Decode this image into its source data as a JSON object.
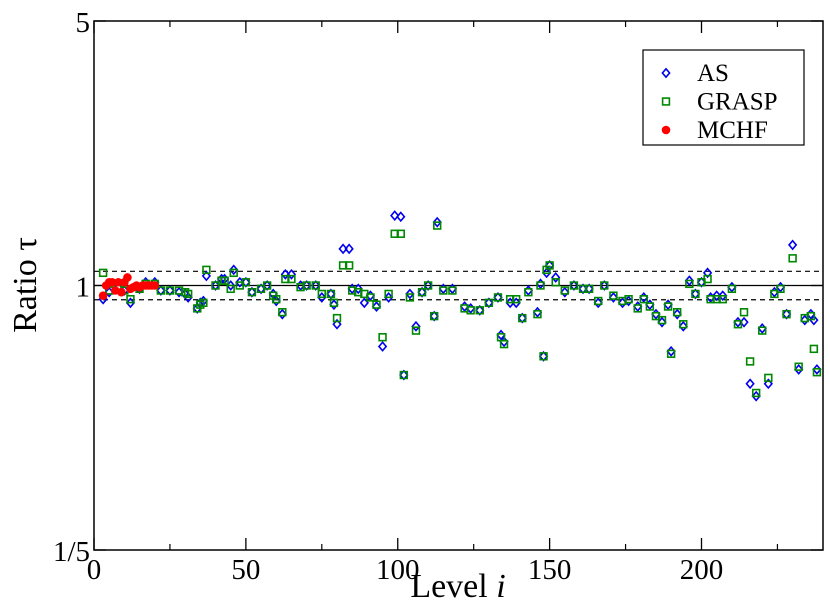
{
  "chart_data": {
    "type": "scatter",
    "title": "",
    "xlabel": "Level",
    "xlabel_var": "i",
    "ylabel": "Ratio τ",
    "xlim": [
      0,
      240
    ],
    "ylim": [
      0.2,
      5
    ],
    "yscale": "log",
    "x_ticks": [
      0,
      50,
      100,
      150,
      200
    ],
    "x_tick_labels": [
      "0",
      "50",
      "100",
      "150",
      "200"
    ],
    "y_ticks": [
      0.2,
      1,
      5
    ],
    "y_tick_labels": [
      "1/5",
      "1",
      "5"
    ],
    "reference_lines": [
      {
        "y": 1.0,
        "style": "solid"
      },
      {
        "y": 1.09,
        "style": "dashed"
      },
      {
        "y": 0.917,
        "style": "dashed"
      }
    ],
    "legend_position": "top-right",
    "series": [
      {
        "name": "AS",
        "marker": "diamond-open",
        "color": "#0000ee",
        "points": [
          [
            3,
            0.92
          ],
          [
            5,
            0.96
          ],
          [
            8,
            0.99
          ],
          [
            10,
            0.97
          ],
          [
            12,
            0.9
          ],
          [
            15,
            0.98
          ],
          [
            17,
            1.02
          ],
          [
            20,
            1.02
          ],
          [
            22,
            0.97
          ],
          [
            25,
            0.97
          ],
          [
            28,
            0.96
          ],
          [
            30,
            0.95
          ],
          [
            31,
            0.93
          ],
          [
            34,
            0.87
          ],
          [
            35,
            0.9
          ],
          [
            36,
            0.91
          ],
          [
            37,
            1.06
          ],
          [
            40,
            1.0
          ],
          [
            42,
            1.04
          ],
          [
            43,
            1.04
          ],
          [
            45,
            1.0
          ],
          [
            46,
            1.1
          ],
          [
            48,
            1.02
          ],
          [
            50,
            1.02
          ],
          [
            52,
            0.96
          ],
          [
            55,
            0.98
          ],
          [
            57,
            1.0
          ],
          [
            59,
            0.95
          ],
          [
            60,
            0.91
          ],
          [
            62,
            0.84
          ],
          [
            63,
            1.07
          ],
          [
            65,
            1.07
          ],
          [
            68,
            1.0
          ],
          [
            70,
            1.0
          ],
          [
            73,
            1.0
          ],
          [
            75,
            0.93
          ],
          [
            78,
            0.95
          ],
          [
            79,
            0.89
          ],
          [
            80,
            0.79
          ],
          [
            82,
            1.25
          ],
          [
            84,
            1.25
          ],
          [
            85,
            0.98
          ],
          [
            87,
            0.98
          ],
          [
            89,
            0.9
          ],
          [
            91,
            0.94
          ],
          [
            93,
            0.88
          ],
          [
            95,
            0.69
          ],
          [
            97,
            0.93
          ],
          [
            99,
            1.53
          ],
          [
            101,
            1.52
          ],
          [
            102,
            0.58
          ],
          [
            104,
            0.95
          ],
          [
            106,
            0.78
          ],
          [
            108,
            0.96
          ],
          [
            110,
            1.0
          ],
          [
            112,
            0.83
          ],
          [
            113,
            1.47
          ],
          [
            115,
            0.98
          ],
          [
            118,
            0.98
          ],
          [
            122,
            0.88
          ],
          [
            124,
            0.87
          ],
          [
            127,
            0.86
          ],
          [
            130,
            0.9
          ],
          [
            133,
            0.93
          ],
          [
            134,
            0.74
          ],
          [
            135,
            0.71
          ],
          [
            137,
            0.9
          ],
          [
            139,
            0.9
          ],
          [
            141,
            0.82
          ],
          [
            143,
            0.97
          ],
          [
            146,
            0.85
          ],
          [
            147,
            1.01
          ],
          [
            148,
            0.65
          ],
          [
            149,
            1.08
          ],
          [
            150,
            1.13
          ],
          [
            152,
            1.05
          ],
          [
            155,
            0.96
          ],
          [
            158,
            1.0
          ],
          [
            161,
            0.98
          ],
          [
            163,
            0.98
          ],
          [
            166,
            0.9
          ],
          [
            168,
            1.0
          ],
          [
            171,
            0.93
          ],
          [
            174,
            0.9
          ],
          [
            176,
            0.91
          ],
          [
            179,
            0.88
          ],
          [
            181,
            0.93
          ],
          [
            183,
            0.89
          ],
          [
            185,
            0.84
          ],
          [
            187,
            0.8
          ],
          [
            189,
            0.89
          ],
          [
            190,
            0.67
          ],
          [
            192,
            0.84
          ],
          [
            194,
            0.78
          ],
          [
            196,
            1.03
          ],
          [
            198,
            0.95
          ],
          [
            200,
            1.02
          ],
          [
            202,
            1.08
          ],
          [
            203,
            0.93
          ],
          [
            205,
            0.94
          ],
          [
            207,
            0.94
          ],
          [
            210,
            0.99
          ],
          [
            212,
            0.8
          ],
          [
            214,
            0.8
          ],
          [
            216,
            0.55
          ],
          [
            218,
            0.51
          ],
          [
            220,
            0.77
          ],
          [
            222,
            0.55
          ],
          [
            224,
            0.96
          ],
          [
            226,
            0.99
          ],
          [
            228,
            0.84
          ],
          [
            230,
            1.28
          ],
          [
            232,
            0.6
          ],
          [
            234,
            0.81
          ],
          [
            236,
            0.84
          ],
          [
            237,
            0.81
          ],
          [
            238,
            0.6
          ]
        ]
      },
      {
        "name": "GRASP",
        "marker": "square-open",
        "color": "#008800",
        "points": [
          [
            3,
            1.08
          ],
          [
            5,
            0.97
          ],
          [
            8,
            0.99
          ],
          [
            10,
            0.97
          ],
          [
            12,
            0.92
          ],
          [
            15,
            0.98
          ],
          [
            17,
            1.01
          ],
          [
            20,
            1.01
          ],
          [
            22,
            0.97
          ],
          [
            25,
            0.97
          ],
          [
            28,
            0.97
          ],
          [
            30,
            0.96
          ],
          [
            31,
            0.95
          ],
          [
            34,
            0.87
          ],
          [
            35,
            0.89
          ],
          [
            36,
            0.9
          ],
          [
            37,
            1.1
          ],
          [
            40,
            1.0
          ],
          [
            42,
            1.03
          ],
          [
            43,
            1.03
          ],
          [
            45,
            0.98
          ],
          [
            46,
            1.08
          ],
          [
            48,
            1.0
          ],
          [
            50,
            1.02
          ],
          [
            52,
            0.96
          ],
          [
            55,
            0.98
          ],
          [
            57,
            1.0
          ],
          [
            59,
            0.94
          ],
          [
            60,
            0.92
          ],
          [
            62,
            0.85
          ],
          [
            63,
            1.04
          ],
          [
            65,
            1.04
          ],
          [
            68,
            0.99
          ],
          [
            70,
            1.0
          ],
          [
            73,
            1.0
          ],
          [
            75,
            0.95
          ],
          [
            78,
            0.95
          ],
          [
            79,
            0.9
          ],
          [
            80,
            0.82
          ],
          [
            82,
            1.13
          ],
          [
            84,
            1.13
          ],
          [
            85,
            0.97
          ],
          [
            87,
            0.96
          ],
          [
            89,
            0.95
          ],
          [
            91,
            0.93
          ],
          [
            93,
            0.89
          ],
          [
            95,
            0.73
          ],
          [
            97,
            0.95
          ],
          [
            99,
            1.37
          ],
          [
            101,
            1.37
          ],
          [
            102,
            0.58
          ],
          [
            104,
            0.93
          ],
          [
            106,
            0.76
          ],
          [
            108,
            0.96
          ],
          [
            110,
            1.0
          ],
          [
            112,
            0.83
          ],
          [
            113,
            1.44
          ],
          [
            115,
            0.97
          ],
          [
            118,
            0.97
          ],
          [
            122,
            0.87
          ],
          [
            124,
            0.86
          ],
          [
            127,
            0.86
          ],
          [
            130,
            0.9
          ],
          [
            133,
            0.93
          ],
          [
            134,
            0.73
          ],
          [
            135,
            0.7
          ],
          [
            137,
            0.92
          ],
          [
            139,
            0.92
          ],
          [
            141,
            0.82
          ],
          [
            143,
            0.96
          ],
          [
            146,
            0.84
          ],
          [
            147,
            1.0
          ],
          [
            148,
            0.65
          ],
          [
            149,
            1.1
          ],
          [
            150,
            1.13
          ],
          [
            152,
            1.02
          ],
          [
            155,
            0.97
          ],
          [
            158,
            1.0
          ],
          [
            161,
            0.98
          ],
          [
            163,
            0.98
          ],
          [
            166,
            0.91
          ],
          [
            168,
            1.0
          ],
          [
            171,
            0.94
          ],
          [
            174,
            0.91
          ],
          [
            176,
            0.92
          ],
          [
            179,
            0.87
          ],
          [
            181,
            0.92
          ],
          [
            183,
            0.88
          ],
          [
            185,
            0.83
          ],
          [
            187,
            0.81
          ],
          [
            189,
            0.88
          ],
          [
            190,
            0.66
          ],
          [
            192,
            0.85
          ],
          [
            194,
            0.79
          ],
          [
            196,
            1.01
          ],
          [
            198,
            0.95
          ],
          [
            200,
            1.02
          ],
          [
            202,
            1.04
          ],
          [
            203,
            0.92
          ],
          [
            205,
            0.92
          ],
          [
            207,
            0.92
          ],
          [
            210,
            0.98
          ],
          [
            212,
            0.79
          ],
          [
            214,
            0.85
          ],
          [
            216,
            0.63
          ],
          [
            218,
            0.52
          ],
          [
            220,
            0.76
          ],
          [
            222,
            0.57
          ],
          [
            224,
            0.95
          ],
          [
            226,
            0.98
          ],
          [
            228,
            0.84
          ],
          [
            230,
            1.18
          ],
          [
            232,
            0.61
          ],
          [
            234,
            0.82
          ],
          [
            236,
            0.83
          ],
          [
            237,
            0.68
          ],
          [
            238,
            0.59
          ]
        ]
      },
      {
        "name": "MCHF",
        "marker": "circle-filled",
        "color": "#ff0000",
        "points": [
          [
            3,
            0.94
          ],
          [
            4,
            1.0
          ],
          [
            5,
            1.02
          ],
          [
            6,
            1.02
          ],
          [
            7,
            0.97
          ],
          [
            8,
            1.02
          ],
          [
            9,
            0.96
          ],
          [
            10,
            1.02
          ],
          [
            11,
            1.05
          ],
          [
            12,
            0.98
          ],
          [
            13,
            0.99
          ],
          [
            14,
            1.0
          ],
          [
            15,
            0.99
          ],
          [
            16,
            1.0
          ],
          [
            17,
            1.0
          ],
          [
            18,
            1.0
          ],
          [
            19,
            1.0
          ],
          [
            20,
            1.0
          ]
        ]
      }
    ]
  }
}
